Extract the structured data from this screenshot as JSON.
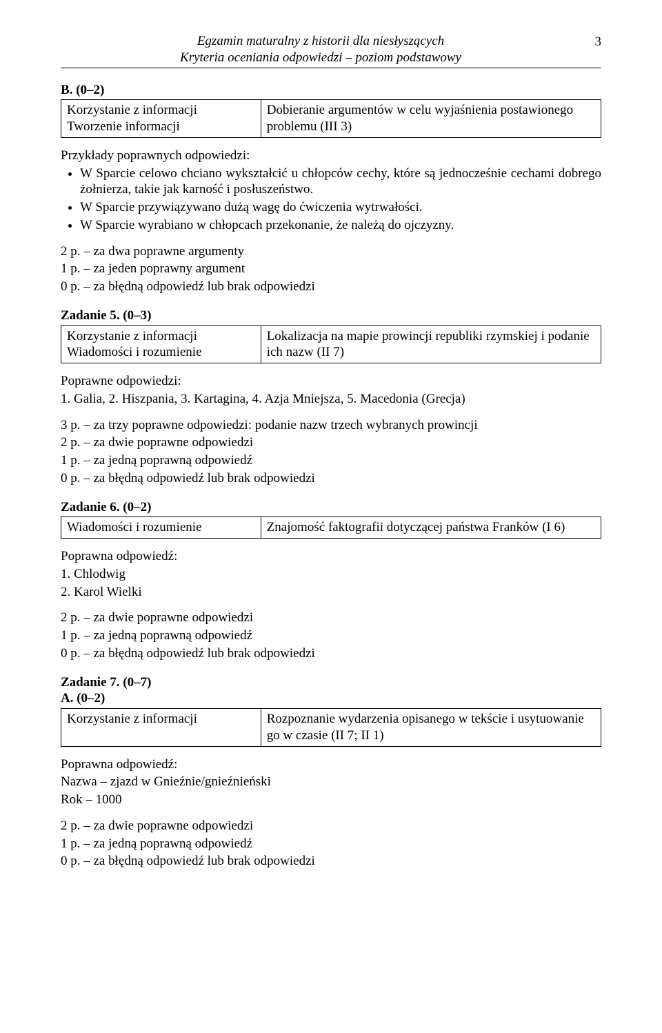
{
  "header": {
    "line1": "Egzamin maturalny z historii dla niesłyszących",
    "line2": "Kryteria oceniania odpowiedzi – poziom podstawowy",
    "page": "3"
  },
  "sectionB": {
    "label": "B. (0–2)",
    "spec_left_line1": "Korzystanie z informacji",
    "spec_left_line2": "Tworzenie informacji",
    "spec_right": "Dobieranie argumentów w celu wyjaśnienia postawionego problemu (III 3)",
    "examples_heading": "Przykłady poprawnych odpowiedzi:",
    "bullet1": "W Sparcie celowo chciano wykształcić u chłopców cechy, które są jednocześnie cechami dobrego żołnierza, takie jak karność i posłuszeństwo.",
    "bullet2": "W Sparcie przywiązywano dużą wagę do ćwiczenia wytrwałości.",
    "bullet3": "W Sparcie wyrabiano w chłopcach przekonanie, że należą do ojczyzny.",
    "score2": "2 p. – za dwa poprawne argumenty",
    "score1": "1 p. – za jeden poprawny argument",
    "score0": "0 p. – za błędną odpowiedź lub brak odpowiedzi"
  },
  "zad5": {
    "title": "Zadanie 5. (0–3)",
    "spec_left_line1": "Korzystanie z informacji",
    "spec_left_line2": "Wiadomości i rozumienie",
    "spec_right": "Lokalizacja na mapie prowincji republiki rzymskiej i podanie ich nazw (II 7)",
    "answers_heading": "Poprawne odpowiedzi:",
    "answers_list": "1. Galia, 2. Hiszpania, 3. Kartagina, 4. Azja Mniejsza, 5. Macedonia (Grecja)",
    "score3": "3 p. – za trzy poprawne odpowiedzi: podanie nazw trzech wybranych prowincji",
    "score2": "2 p. – za dwie poprawne odpowiedzi",
    "score1": "1 p. – za jedną poprawną odpowiedź",
    "score0": "0 p. – za błędną odpowiedź lub brak odpowiedzi"
  },
  "zad6": {
    "title": "Zadanie 6. (0–2)",
    "spec_left": "Wiadomości i rozumienie",
    "spec_right": "Znajomość faktografii dotyczącej państwa Franków (I 6)",
    "answers_heading": "Poprawna odpowiedź:",
    "a1": "1.  Chlodwig",
    "a2": "2.  Karol Wielki",
    "score2": "2 p. – za dwie poprawne odpowiedzi",
    "score1": "1 p. – za jedną poprawną odpowiedź",
    "score0": "0 p. – za błędną odpowiedź lub brak odpowiedzi"
  },
  "zad7": {
    "title": "Zadanie 7. (0–7)",
    "partA": "A. (0–2)",
    "spec_left": "Korzystanie z informacji",
    "spec_right": "Rozpoznanie wydarzenia opisanego w tekście i usytuowanie go w czasie (II 7; II 1)",
    "answers_heading": "Poprawna odpowiedź:",
    "a1": "Nazwa – zjazd w Gnieźnie/gnieźnieński",
    "a2": "Rok – 1000",
    "score2": "2 p. – za dwie poprawne odpowiedzi",
    "score1": "1 p. – za jedną poprawną odpowiedź",
    "score0": "0 p. – za błędną odpowiedź lub brak odpowiedzi"
  }
}
